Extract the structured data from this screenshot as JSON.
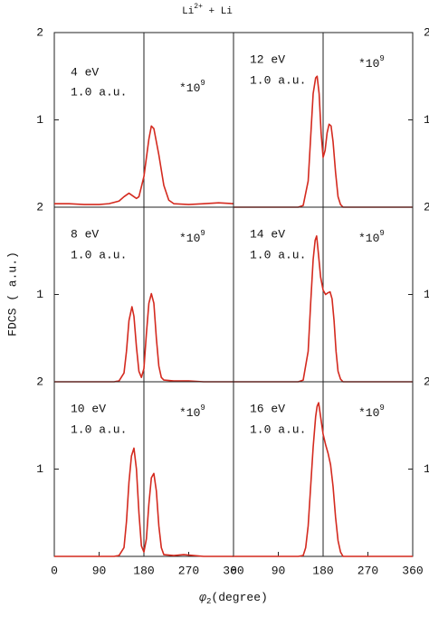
{
  "title": [
    "Li",
    "2+",
    " + Li"
  ],
  "ylabel": "FDCS ( a.u.)",
  "xlabel": [
    "φ",
    "2",
    "(degree)"
  ],
  "chart_data": [
    {
      "type": "line",
      "energy": "4 eV",
      "distance": "1.0 a.u.",
      "scale": [
        "*10",
        "9"
      ],
      "x": [
        0,
        30,
        60,
        90,
        110,
        130,
        140,
        150,
        160,
        165,
        170,
        180,
        190,
        195,
        200,
        210,
        220,
        230,
        240,
        270,
        300,
        330,
        360
      ],
      "series": [
        {
          "color": "#d42a1f",
          "values": [
            0.04,
            0.04,
            0.03,
            0.03,
            0.04,
            0.07,
            0.12,
            0.16,
            0.12,
            0.1,
            0.12,
            0.35,
            0.78,
            0.93,
            0.9,
            0.6,
            0.25,
            0.08,
            0.04,
            0.03,
            0.04,
            0.05,
            0.04
          ]
        }
      ],
      "xlim": [
        0,
        360
      ],
      "ylim": [
        0,
        2
      ],
      "yticks": [
        1,
        2
      ],
      "vline": 180
    },
    {
      "type": "line",
      "energy": "12 eV",
      "distance": "1.0 a.u.",
      "scale": [
        "*10",
        "9"
      ],
      "x": [
        0,
        90,
        130,
        140,
        150,
        155,
        160,
        165,
        168,
        172,
        176,
        180,
        184,
        188,
        192,
        196,
        200,
        205,
        210,
        215,
        220,
        250,
        360
      ],
      "series": [
        {
          "color": "#d42a1f",
          "values": [
            0,
            0,
            0,
            0.02,
            0.3,
            0.8,
            1.3,
            1.48,
            1.5,
            1.3,
            0.85,
            0.57,
            0.65,
            0.85,
            0.95,
            0.93,
            0.75,
            0.4,
            0.12,
            0.03,
            0,
            0,
            0
          ]
        }
      ],
      "xlim": [
        0,
        360
      ],
      "ylim": [
        0,
        2
      ],
      "yticks": [
        1,
        2
      ],
      "vline": 180
    },
    {
      "type": "line",
      "energy": "8 eV",
      "distance": "1.0 a.u.",
      "scale": [
        "*10",
        "9"
      ],
      "x": [
        0,
        90,
        120,
        130,
        140,
        145,
        150,
        156,
        160,
        165,
        170,
        175,
        180,
        185,
        190,
        195,
        200,
        205,
        210,
        215,
        220,
        240,
        270,
        300,
        360
      ],
      "series": [
        {
          "color": "#d42a1f",
          "values": [
            0,
            0,
            0,
            0.01,
            0.1,
            0.35,
            0.7,
            0.86,
            0.75,
            0.4,
            0.12,
            0.05,
            0.15,
            0.55,
            0.9,
            1.01,
            0.9,
            0.5,
            0.18,
            0.05,
            0.02,
            0.01,
            0.01,
            0,
            0
          ]
        }
      ],
      "xlim": [
        0,
        360
      ],
      "ylim": [
        0,
        2
      ],
      "yticks": [
        1,
        2
      ],
      "vline": 180
    },
    {
      "type": "line",
      "energy": "14 eV",
      "distance": "1.0 a.u.",
      "scale": [
        "*10",
        "9"
      ],
      "x": [
        0,
        90,
        130,
        140,
        150,
        155,
        160,
        164,
        167,
        170,
        175,
        180,
        185,
        190,
        194,
        198,
        202,
        206,
        210,
        215,
        220,
        250,
        360
      ],
      "series": [
        {
          "color": "#d42a1f",
          "values": [
            0,
            0,
            0,
            0.02,
            0.35,
            0.9,
            1.4,
            1.62,
            1.67,
            1.5,
            1.2,
            1.05,
            1.0,
            1.02,
            1.03,
            0.95,
            0.7,
            0.35,
            0.12,
            0.03,
            0,
            0,
            0
          ]
        }
      ],
      "xlim": [
        0,
        360
      ],
      "ylim": [
        0,
        2
      ],
      "yticks": [
        1,
        2
      ],
      "vline": 180
    },
    {
      "type": "line",
      "energy": "10 eV",
      "distance": "1.0 a.u.",
      "scale": [
        "*10",
        "9"
      ],
      "x": [
        0,
        90,
        120,
        130,
        140,
        145,
        150,
        155,
        160,
        165,
        170,
        175,
        180,
        185,
        190,
        195,
        200,
        205,
        210,
        215,
        220,
        240,
        260,
        280,
        300,
        360
      ],
      "series": [
        {
          "color": "#d42a1f",
          "values": [
            0,
            0,
            0,
            0.01,
            0.1,
            0.4,
            0.85,
            1.15,
            1.24,
            1.0,
            0.5,
            0.12,
            0.05,
            0.2,
            0.6,
            0.9,
            0.95,
            0.75,
            0.35,
            0.1,
            0.02,
            0.01,
            0.02,
            0.01,
            0,
            0
          ]
        }
      ],
      "xlim": [
        0,
        360
      ],
      "ylim": [
        0,
        2
      ],
      "yticks": [
        1,
        2
      ],
      "xticks": [
        0,
        90,
        180,
        270,
        360
      ],
      "vline": 180
    },
    {
      "type": "line",
      "energy": "16 eV",
      "distance": "1.0 a.u.",
      "scale": [
        "*10",
        "9"
      ],
      "x": [
        0,
        90,
        130,
        140,
        145,
        150,
        155,
        160,
        165,
        168,
        171,
        175,
        180,
        185,
        190,
        195,
        200,
        205,
        210,
        215,
        220,
        250,
        360
      ],
      "series": [
        {
          "color": "#d42a1f",
          "values": [
            0,
            0,
            0,
            0.01,
            0.1,
            0.35,
            0.8,
            1.25,
            1.6,
            1.72,
            1.76,
            1.6,
            1.4,
            1.28,
            1.18,
            1.05,
            0.8,
            0.45,
            0.18,
            0.05,
            0,
            0,
            0
          ]
        }
      ],
      "xlim": [
        0,
        360
      ],
      "ylim": [
        0,
        2
      ],
      "yticks": [
        1,
        2
      ],
      "xticks": [
        0,
        90,
        180,
        270,
        360
      ],
      "vline": 180
    }
  ]
}
